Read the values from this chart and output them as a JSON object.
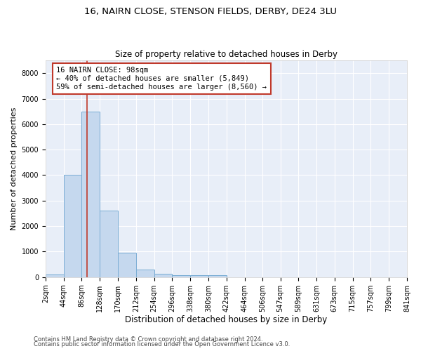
{
  "title1": "16, NAIRN CLOSE, STENSON FIELDS, DERBY, DE24 3LU",
  "title2": "Size of property relative to detached houses in Derby",
  "xlabel": "Distribution of detached houses by size in Derby",
  "ylabel": "Number of detached properties",
  "bar_edges": [
    2,
    44,
    86,
    128,
    170,
    212,
    254,
    296,
    338,
    380,
    422,
    464,
    506,
    547,
    589,
    631,
    673,
    715,
    757,
    799,
    841
  ],
  "bar_heights": [
    100,
    4000,
    6500,
    2600,
    950,
    300,
    120,
    80,
    80,
    80,
    0,
    0,
    0,
    0,
    0,
    0,
    0,
    0,
    0,
    0
  ],
  "bar_color": "#c5d8ee",
  "bar_edge_color": "#7aadd4",
  "bar_linewidth": 0.7,
  "vline_x": 98,
  "vline_color": "#c0392b",
  "vline_linewidth": 1.2,
  "ylim": [
    0,
    8500
  ],
  "yticks": [
    0,
    1000,
    2000,
    3000,
    4000,
    5000,
    6000,
    7000,
    8000
  ],
  "annotation_text": "16 NAIRN CLOSE: 98sqm\n← 40% of detached houses are smaller (5,849)\n59% of semi-detached houses are larger (8,560) →",
  "annotation_box_color": "white",
  "annotation_box_edgecolor": "#c0392b",
  "annotation_fontsize": 7.5,
  "bg_color": "#e8eef8",
  "grid_color": "white",
  "title1_fontsize": 9.5,
  "title2_fontsize": 8.5,
  "xlabel_fontsize": 8.5,
  "ylabel_fontsize": 8,
  "tick_fontsize": 7,
  "footer_text1": "Contains HM Land Registry data © Crown copyright and database right 2024.",
  "footer_text2": "Contains public sector information licensed under the Open Government Licence v3.0.",
  "footer_fontsize": 6.0
}
